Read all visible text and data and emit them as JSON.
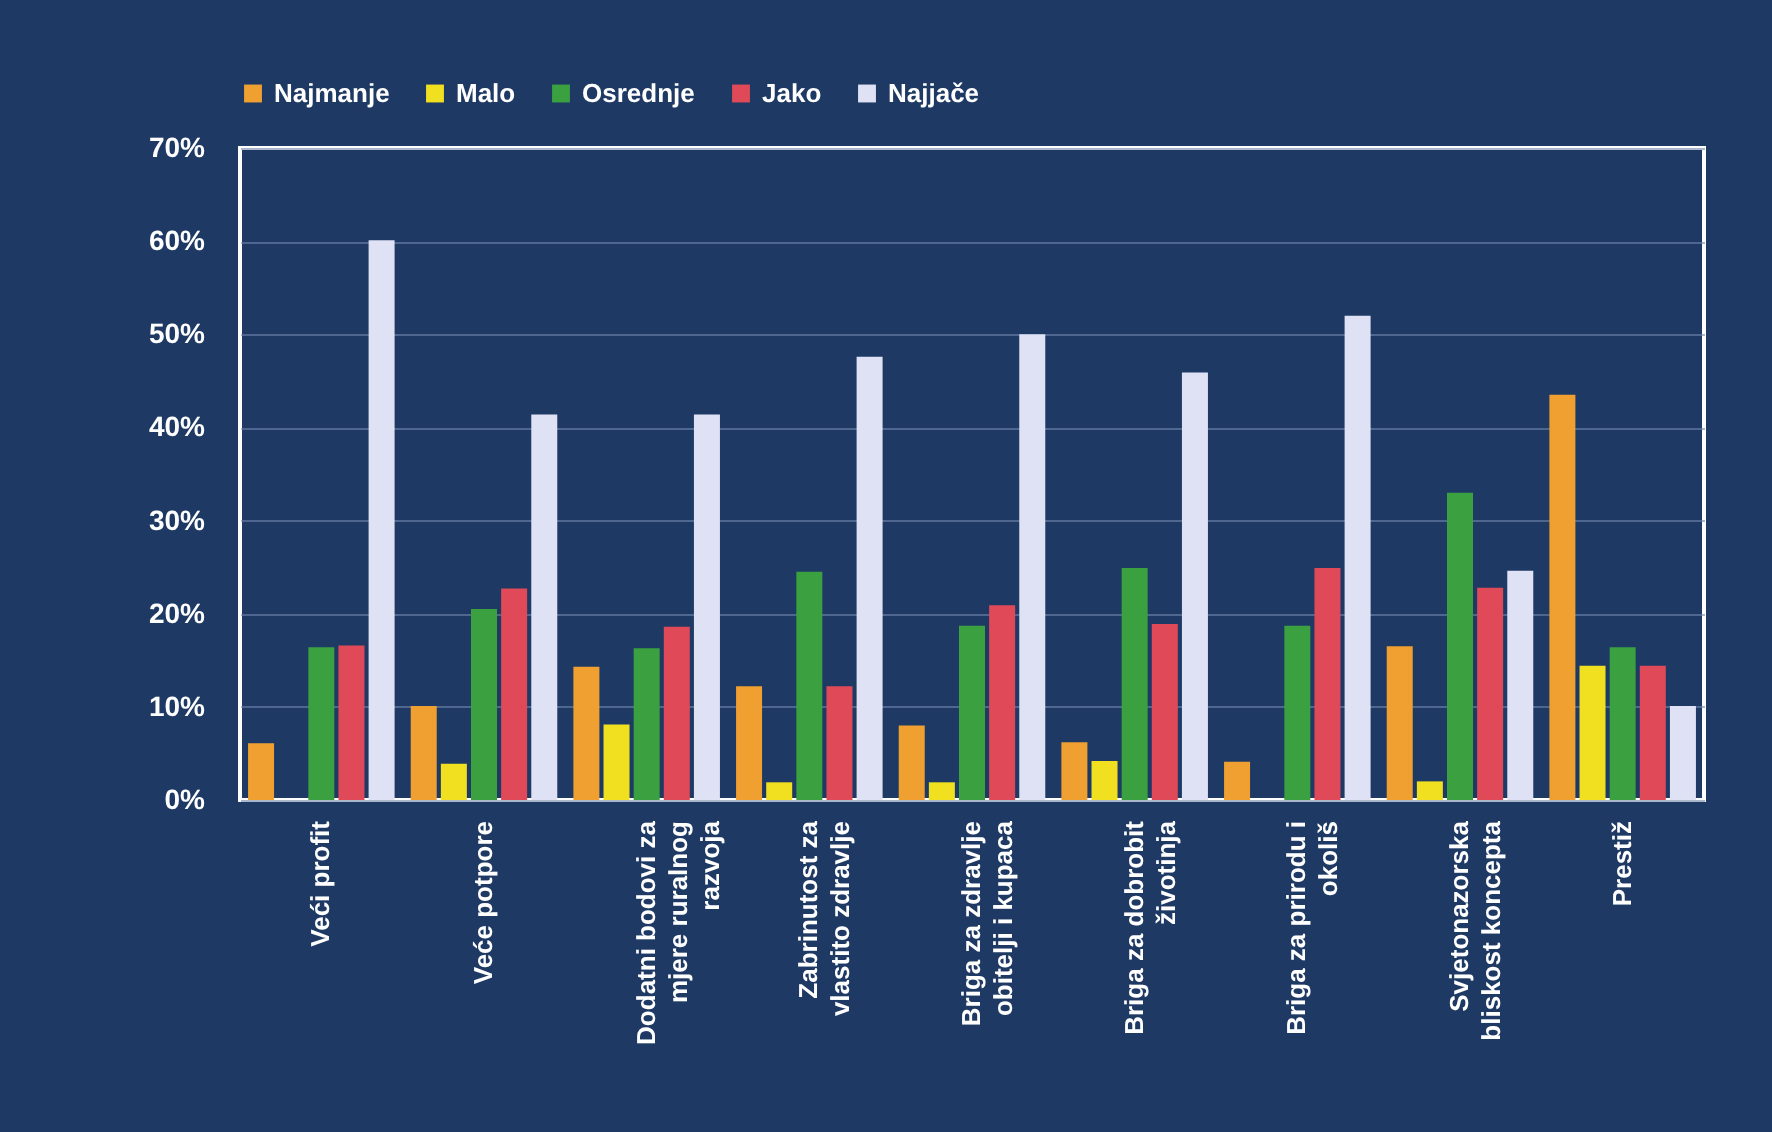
{
  "chart_data": {
    "type": "bar",
    "categories": [
      "Veći profit",
      "Veće potpore",
      "Dodatni bodovi za mjere ruralnog razvoja",
      "Zabrinutost za vlastito zdravlje",
      "Briga za zdravlje obitelji i kupaca",
      "Briga za dobrobit životinja",
      "Briga za prirodu i okoliš",
      "Svjetonazorska bliskost koncepta",
      "Prestiž"
    ],
    "series": [
      {
        "name": "Najmanje",
        "color": "#f0a030",
        "values": [
          6.1,
          10.1,
          14.3,
          12.2,
          8.0,
          6.2,
          4.1,
          16.5,
          43.5
        ]
      },
      {
        "name": "Malo",
        "color": "#f0e020",
        "values": [
          0,
          3.9,
          8.1,
          1.9,
          1.9,
          4.2,
          0,
          2.0,
          14.4
        ]
      },
      {
        "name": "Osrednje",
        "color": "#3aa040",
        "values": [
          16.4,
          20.5,
          16.3,
          24.5,
          18.7,
          24.9,
          18.7,
          33.0,
          16.4
        ]
      },
      {
        "name": "Jako",
        "color": "#e04a58",
        "values": [
          16.6,
          22.7,
          18.6,
          12.2,
          20.9,
          18.9,
          24.9,
          22.8,
          14.4
        ]
      },
      {
        "name": "Najjače",
        "color": "#dfe2f4",
        "values": [
          60.1,
          41.4,
          41.4,
          47.6,
          50.0,
          45.9,
          52.0,
          24.6,
          10.1
        ]
      }
    ],
    "ylim": [
      0,
      70
    ],
    "yticks": [
      {
        "value": 0,
        "label": "0%"
      },
      {
        "value": 10,
        "label": "10%"
      },
      {
        "value": 20,
        "label": "20%"
      },
      {
        "value": 30,
        "label": "30%"
      },
      {
        "value": 40,
        "label": "40%"
      },
      {
        "value": 50,
        "label": "50%"
      },
      {
        "value": 60,
        "label": "60%"
      },
      {
        "value": 70,
        "label": "70%"
      }
    ],
    "grid": "y",
    "legend": "top"
  }
}
